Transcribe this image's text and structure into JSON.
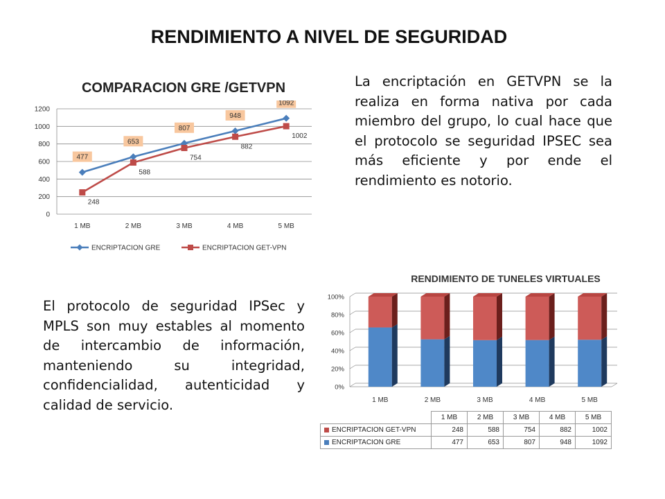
{
  "slide": {
    "title": "RENDIMIENTO A NIVEL DE SEGURIDAD",
    "paragraph_1": "La encriptación en GETVPN se la realiza en forma nativa por cada miembro del grupo, lo cual hace que el protocolo se seguridad IPSEC sea más eficiente y por ende el rendimiento es notorio.",
    "paragraph_2": "El protocolo de seguridad IPSec y MPLS son muy estables al momento de intercambio de información, manteniendo su integridad, confidencialidad, autenticidad y calidad de servicio."
  },
  "colors": {
    "gre": "#4a7ebb",
    "getvpn": "#be4b48",
    "label_bg": "#f8c79e",
    "grid": "#8c8c8c"
  },
  "chart_data": [
    {
      "type": "line",
      "title": "COMPARACION GRE /GETVPN",
      "categories": [
        "1 MB",
        "2 MB",
        "3 MB",
        "4 MB",
        "5 MB"
      ],
      "series": [
        {
          "name": "ENCRIPTACION GRE",
          "values": [
            477,
            653,
            807,
            948,
            1092
          ],
          "marker": "diamond"
        },
        {
          "name": "ENCRIPTACION GET-VPN",
          "values": [
            248,
            588,
            754,
            882,
            1002
          ],
          "marker": "square"
        }
      ],
      "ylim": [
        0,
        1200
      ],
      "yticks": [
        0,
        200,
        400,
        600,
        800,
        1000,
        1200
      ],
      "grid": true,
      "legend": "bottom"
    },
    {
      "type": "bar",
      "stacked": "100%",
      "three_d": true,
      "title": "RENDIMIENTO DE TUNELES VIRTUALES",
      "categories": [
        "1 MB",
        "2 MB",
        "3 MB",
        "4 MB",
        "5 MB"
      ],
      "series": [
        {
          "name": "ENCRIPTACION GET-VPN",
          "values": [
            248,
            588,
            754,
            882,
            1002
          ]
        },
        {
          "name": "ENCRIPTACION GRE",
          "values": [
            477,
            653,
            807,
            948,
            1092
          ]
        }
      ],
      "ylim": [
        0,
        100
      ],
      "yticks": [
        "0%",
        "20%",
        "40%",
        "60%",
        "80%",
        "100%"
      ],
      "grid": true,
      "legend": "data-table"
    }
  ]
}
